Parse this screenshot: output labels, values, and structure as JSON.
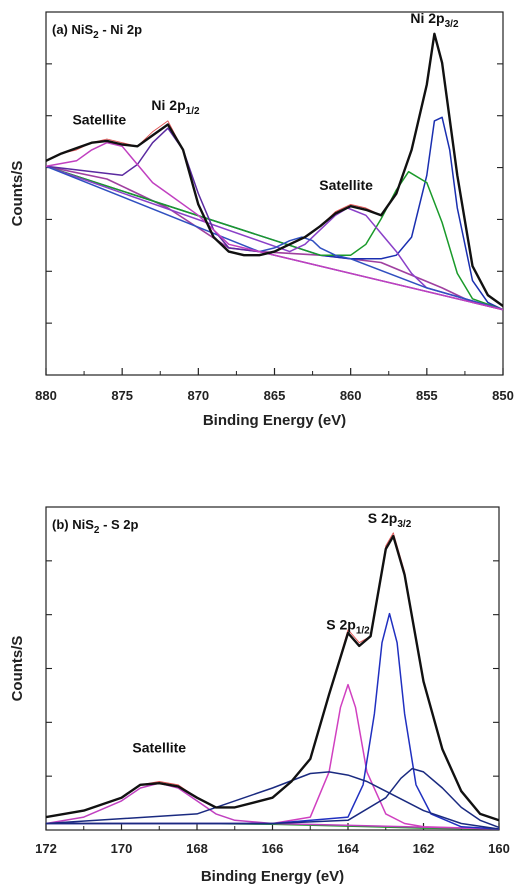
{
  "chart_data": [
    {
      "type": "line",
      "panel_label": "(a) NiS",
      "panel_label_sub": "2",
      "panel_label_rest": " - Ni 2p",
      "xlabel": "Binding Energy (eV)",
      "ylabel": "Counts/S",
      "xlim": [
        880,
        850
      ],
      "x_reversed": true,
      "ylim": [
        0,
        100
      ],
      "y_ticks_labeled": false,
      "xticks": [
        880,
        875,
        870,
        865,
        860,
        855,
        850
      ],
      "xtick_labels": [
        "880",
        "875",
        "870",
        "865",
        "860",
        "855",
        "850"
      ],
      "annotations": [
        {
          "text": "Satellite",
          "sub": "",
          "x": 876.5,
          "y": 69
        },
        {
          "text": "Ni 2p",
          "sub": "1/2",
          "x": 871.5,
          "y": 73
        },
        {
          "text": "Satellite",
          "sub": "",
          "x": 860.3,
          "y": 51
        },
        {
          "text": "Ni 2p",
          "sub": "3/2",
          "x": 854.5,
          "y": 97
        }
      ],
      "series": [
        {
          "role": "raw",
          "color": "#e05050",
          "x": [
            880,
            879,
            878,
            877,
            876,
            875,
            874,
            873,
            872,
            871,
            870,
            869,
            868,
            867,
            866,
            865,
            864,
            863,
            862,
            861,
            860,
            859,
            858,
            857,
            856,
            855,
            854.5,
            854,
            853,
            852,
            851,
            850
          ],
          "y": [
            59,
            61,
            62,
            64,
            65,
            64,
            63,
            67,
            70,
            62,
            47,
            38,
            34,
            33,
            33,
            34,
            36,
            38,
            41,
            45,
            47,
            46,
            44,
            50,
            62,
            80,
            94,
            86,
            55,
            30,
            22,
            19
          ]
        },
        {
          "role": "envelope",
          "color": "#111111",
          "x": [
            880,
            879,
            878,
            877,
            876,
            875,
            874,
            873,
            872,
            871,
            870,
            869,
            868,
            867,
            866,
            865,
            864,
            863,
            862,
            861,
            860,
            859,
            858,
            857,
            856,
            855,
            854.5,
            854,
            853,
            852,
            851,
            850
          ],
          "y": [
            59,
            61,
            62.5,
            64,
            64.5,
            63.5,
            63,
            66,
            69,
            62,
            47,
            38,
            34,
            33,
            33,
            34,
            36,
            38,
            41,
            44.5,
            46.5,
            45.5,
            44,
            50,
            62,
            80,
            94,
            86,
            55,
            30,
            22,
            19
          ]
        },
        {
          "role": "background",
          "color": "#a040a0",
          "x": [
            880,
            876,
            872,
            868,
            866,
            862,
            858,
            854,
            852,
            850
          ],
          "y": [
            57.5,
            54,
            46,
            35,
            34,
            33,
            31,
            24,
            20,
            18
          ]
        },
        {
          "role": "component",
          "name": "Ni 2p3/2 main",
          "color": "#1a2fb0",
          "x": [
            880,
            862,
            860,
            858,
            857,
            856,
            855,
            854.5,
            854,
            853.5,
            853,
            852,
            851,
            850
          ],
          "y": [
            57.5,
            33,
            32,
            32,
            33,
            38,
            55,
            70,
            71,
            62,
            46,
            26,
            20,
            18
          ]
        },
        {
          "role": "component",
          "name": "Ni 2p3/2 shoulder",
          "color": "#1a9a2a",
          "x": [
            880,
            862,
            860,
            859,
            858,
            857,
            856.2,
            855,
            854,
            853,
            852,
            850
          ],
          "y": [
            57.5,
            33,
            33,
            36,
            43,
            51,
            56,
            53,
            42,
            28,
            21,
            18
          ]
        },
        {
          "role": "component",
          "name": "Ni 2p3/2 satellite",
          "color": "#8a40c8",
          "x": [
            880,
            864,
            863,
            862,
            861,
            860.2,
            859,
            858,
            857,
            856,
            855,
            850
          ],
          "y": [
            57.5,
            34,
            36,
            40,
            44,
            46,
            44,
            39,
            34,
            28,
            24,
            18
          ]
        },
        {
          "role": "component",
          "name": "Ni 2p satellite minor",
          "color": "#3050c0",
          "x": [
            880,
            866,
            865,
            864,
            863.2,
            862.5,
            862,
            861,
            860,
            855,
            850
          ],
          "y": [
            57.5,
            34,
            35,
            37,
            38,
            37,
            35,
            33,
            32,
            24,
            18
          ]
        },
        {
          "role": "component",
          "name": "Ni 2p1/2 main",
          "color": "#5a2aa0",
          "x": [
            880,
            875,
            874,
            873,
            872,
            871,
            870,
            869,
            868,
            866,
            850
          ],
          "y": [
            57.5,
            55,
            58,
            64,
            68,
            62,
            50,
            40,
            35,
            34,
            18
          ]
        },
        {
          "role": "component",
          "name": "Ni 2p1/2 satellite",
          "color": "#c040c0",
          "x": [
            880,
            878,
            877,
            876,
            875,
            874,
            873,
            872,
            870,
            868,
            850
          ],
          "y": [
            57.5,
            59,
            62,
            64,
            63,
            58,
            53,
            50,
            44,
            36,
            18
          ]
        }
      ]
    },
    {
      "type": "line",
      "panel_label": "(b) NiS",
      "panel_label_sub": "2",
      "panel_label_rest": " - S 2p",
      "xlabel": "Binding Energy (eV)",
      "ylabel": "Counts/S",
      "xlim": [
        172,
        160
      ],
      "x_reversed": true,
      "ylim": [
        0,
        100
      ],
      "y_ticks_labeled": false,
      "xticks": [
        172,
        170,
        168,
        166,
        164,
        162,
        160
      ],
      "xtick_labels": [
        "172",
        "170",
        "168",
        "166",
        "164",
        "162",
        "160"
      ],
      "annotations": [
        {
          "text": "Satellite",
          "sub": "",
          "x": 169.0,
          "y": 24
        },
        {
          "text": "S 2p",
          "sub": "1/2",
          "x": 164.0,
          "y": 62
        },
        {
          "text": "S 2p",
          "sub": "3/2",
          "x": 162.9,
          "y": 95
        }
      ],
      "series": [
        {
          "role": "raw",
          "color": "#e05050",
          "x": [
            172,
            171,
            170,
            169.5,
            169,
            168.5,
            168,
            167.5,
            167,
            166,
            165.5,
            165,
            164.5,
            164,
            163.7,
            163.4,
            163,
            162.8,
            162.5,
            162,
            161.5,
            161,
            160.5,
            160
          ],
          "y": [
            4,
            6,
            10,
            14,
            15,
            14,
            10,
            7,
            7,
            10,
            15,
            22,
            42,
            62,
            58,
            60,
            88,
            92,
            80,
            46,
            25,
            12,
            5,
            3
          ]
        },
        {
          "role": "envelope",
          "color": "#111111",
          "x": [
            172,
            171,
            170,
            169.5,
            169,
            168.5,
            168,
            167.5,
            167,
            166,
            165.5,
            165,
            164.5,
            164,
            163.7,
            163.4,
            163,
            162.8,
            162.5,
            162,
            161.5,
            161,
            160.5,
            160
          ],
          "y": [
            4,
            6,
            10,
            14,
            14.5,
            13.5,
            10,
            7,
            7,
            10,
            15,
            22,
            42,
            61,
            57,
            60,
            87,
            91,
            79,
            46,
            25,
            12,
            5,
            3
          ]
        },
        {
          "role": "background",
          "color": "#1a9a2a",
          "x": [
            172,
            170,
            168,
            166,
            164,
            162,
            160
          ],
          "y": [
            2,
            2,
            2,
            1.8,
            1.2,
            0.6,
            0.3
          ]
        },
        {
          "role": "component",
          "name": "Satellite",
          "color": "#c040c0",
          "x": [
            172,
            171,
            170,
            169.5,
            169,
            168.5,
            168,
            167.5,
            167,
            166,
            160
          ],
          "y": [
            2,
            4,
            9,
            13,
            14.5,
            13,
            9,
            5,
            3,
            2,
            0.3
          ]
        },
        {
          "role": "component",
          "name": "S 2p1/2",
          "color": "#d040c0",
          "x": [
            172,
            166,
            165,
            164.5,
            164.2,
            164,
            163.8,
            163.5,
            163,
            162.5,
            162,
            160
          ],
          "y": [
            2,
            2,
            4,
            18,
            38,
            45,
            38,
            18,
            5,
            2,
            1,
            0.3
          ]
        },
        {
          "role": "component",
          "name": "S 2p3/2",
          "color": "#2030c0",
          "x": [
            172,
            166,
            164,
            163.6,
            163.3,
            163.1,
            162.9,
            162.7,
            162.5,
            162.2,
            161.8,
            161,
            160
          ],
          "y": [
            2,
            2,
            4,
            14,
            36,
            58,
            67,
            58,
            36,
            14,
            5,
            1,
            0.3
          ]
        },
        {
          "role": "component",
          "name": "Broad component",
          "color": "#1a2a80",
          "x": [
            172,
            168,
            166,
            165,
            164.5,
            164,
            163.5,
            163,
            162,
            161,
            160
          ],
          "y": [
            2,
            5,
            13,
            17.5,
            18,
            17,
            15,
            12,
            6,
            2,
            0.3
          ]
        },
        {
          "role": "component",
          "name": "Low-BE component",
          "color": "#1a2a80",
          "x": [
            172,
            166,
            164,
            163,
            162.6,
            162.3,
            162,
            161.5,
            161,
            160.5,
            160
          ],
          "y": [
            2,
            2,
            3,
            10,
            16,
            19,
            18,
            13,
            7,
            3,
            0.8
          ]
        }
      ]
    }
  ]
}
